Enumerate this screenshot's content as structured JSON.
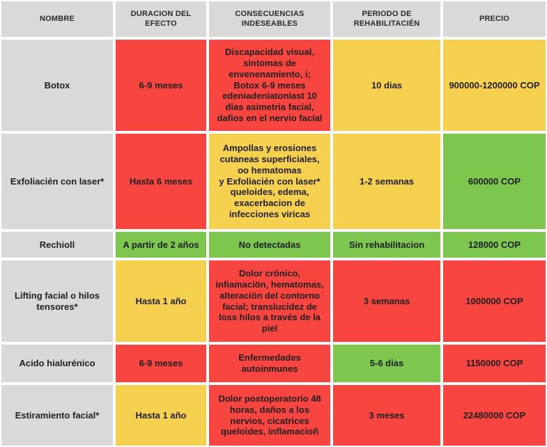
{
  "chart_data": {
    "type": "table",
    "title": "",
    "columns": [
      "NOMBRE",
      "DURACION DEL\nEFECTO",
      "CONSECUENCIAS\nINDESEABLES",
      "PERIODO DE\nREHABILITACIÉN",
      "PRECIO"
    ],
    "palette": {
      "gray": "#d9d9d9",
      "red": "#f9453f",
      "yellow": "#f6d14f",
      "green": "#7dc74f"
    },
    "rows": [
      {
        "cells": [
          {
            "text": "Botox",
            "color": "gray"
          },
          {
            "text": "6-9 meses",
            "color": "red"
          },
          {
            "text": "Discapacidad visual,\nsintomas de\nenvenenamiento, i;\nBotox 6-9 meses\nedeniadeniatoniast 10\ndias asimetria facial,\ndafios en el nervio facial",
            "color": "red"
          },
          {
            "text": "10 dias",
            "color": "yellow"
          },
          {
            "text": "900000-1200000 COP",
            "color": "yellow"
          }
        ]
      },
      {
        "cells": [
          {
            "text": "Exfoliacién con laser*",
            "color": "gray"
          },
          {
            "text": "Hasta 6 meses",
            "color": "red"
          },
          {
            "text": "Ampollas y erosiones\ncutaneas superficiales,\noo hematomas\ny Exfoliacién con laser*\nqueloides, edema,\nexacerbacion de\ninfecciones viricas",
            "color": "yellow"
          },
          {
            "text": "1-2 semanas",
            "color": "yellow"
          },
          {
            "text": "600000 COP",
            "color": "green"
          }
        ]
      },
      {
        "cells": [
          {
            "text": "Rechioll",
            "color": "gray"
          },
          {
            "text": "A partir de 2 años",
            "color": "green"
          },
          {
            "text": "No detectadas",
            "color": "green"
          },
          {
            "text": "Sin rehabilitacion",
            "color": "green"
          },
          {
            "text": "128000  COP",
            "color": "green"
          }
        ]
      },
      {
        "cells": [
          {
            "text": "Lifting facial o hilos\ntensores*",
            "color": "gray"
          },
          {
            "text": "Hasta 1 año",
            "color": "yellow"
          },
          {
            "text": "Dolor crönico,\ninfiamaciön, hematomas,\nalteraciön del contorno\nfacial; translucidez de\nloss hilos a través de la\npiel",
            "color": "red"
          },
          {
            "text": "3 semanas",
            "color": "red"
          },
          {
            "text": "1000000 COP",
            "color": "red"
          }
        ]
      },
      {
        "cells": [
          {
            "text": "Acido hialurénico",
            "color": "gray"
          },
          {
            "text": "6-9 meses",
            "color": "red"
          },
          {
            "text": "Enfermedades\nautoinmunes",
            "color": "red"
          },
          {
            "text": "5-6 dias",
            "color": "green"
          },
          {
            "text": "1150000 COP",
            "color": "red"
          }
        ]
      },
      {
        "cells": [
          {
            "text": "Estiramiento facial*",
            "color": "gray"
          },
          {
            "text": "Hasta 1 año",
            "color": "yellow"
          },
          {
            "text": "Dolor postoperatorio 48\nhoras, daños a los\nnervios, cicatrices\nqueloides, inflamacioñ",
            "color": "red"
          },
          {
            "text": "3 meses",
            "color": "red"
          },
          {
            "text": "22480000 COP",
            "color": "red"
          }
        ]
      }
    ]
  }
}
